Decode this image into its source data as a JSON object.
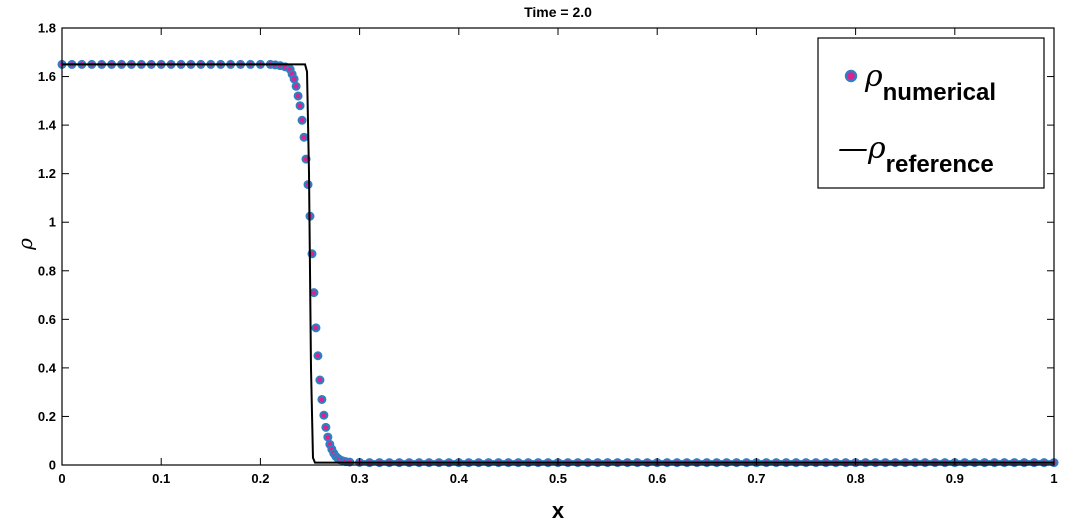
{
  "chart_data": {
    "type": "line",
    "title": "Time = 2.0",
    "xlabel": "x",
    "ylabel": "ρ",
    "xlim": [
      0,
      1
    ],
    "ylim": [
      0,
      1.8
    ],
    "xticks": [
      0,
      0.1,
      0.2,
      0.3,
      0.4,
      0.5,
      0.6,
      0.7,
      0.8,
      0.9,
      1
    ],
    "xtick_labels": [
      "0",
      "0.1",
      "0.2",
      "0.3",
      "0.4",
      "0.5",
      "0.6",
      "0.7",
      "0.8",
      "0.9",
      "1"
    ],
    "yticks": [
      0,
      0.2,
      0.4,
      0.6,
      0.8,
      1,
      1.2,
      1.4,
      1.6,
      1.8
    ],
    "ytick_labels": [
      "0",
      "0.2",
      "0.4",
      "0.6",
      "0.8",
      "1",
      "1.2",
      "1.4",
      "1.6",
      "1.8"
    ],
    "grid": false,
    "legend_position": "top-right",
    "series": [
      {
        "name": "ρ numerical",
        "legend_symbol": "ρ",
        "legend_subscript": "numerical",
        "style": "markers",
        "marker_face": "#e0208f",
        "marker_edge": "#2f7fc1",
        "note": "left state 1.65, smooth drop centered near x = 0.25, right state 0.01",
        "x": [
          0,
          0.01,
          0.02,
          0.03,
          0.04,
          0.05,
          0.06,
          0.07,
          0.08,
          0.09,
          0.1,
          0.11,
          0.12,
          0.13,
          0.14,
          0.15,
          0.16,
          0.17,
          0.18,
          0.19,
          0.2,
          0.21,
          0.215,
          0.22,
          0.225,
          0.23,
          0.232,
          0.234,
          0.236,
          0.238,
          0.24,
          0.242,
          0.244,
          0.246,
          0.248,
          0.25,
          0.252,
          0.254,
          0.256,
          0.258,
          0.26,
          0.262,
          0.264,
          0.266,
          0.268,
          0.27,
          0.272,
          0.274,
          0.276,
          0.278,
          0.28,
          0.283,
          0.286,
          0.29,
          0.3,
          0.31,
          0.32,
          0.33,
          0.34,
          0.35,
          0.36,
          0.37,
          0.38,
          0.39,
          0.4,
          0.41,
          0.42,
          0.43,
          0.44,
          0.45,
          0.46,
          0.47,
          0.48,
          0.49,
          0.5,
          0.51,
          0.52,
          0.53,
          0.54,
          0.55,
          0.56,
          0.57,
          0.58,
          0.59,
          0.6,
          0.61,
          0.62,
          0.63,
          0.64,
          0.65,
          0.66,
          0.67,
          0.68,
          0.69,
          0.7,
          0.71,
          0.72,
          0.73,
          0.74,
          0.75,
          0.76,
          0.77,
          0.78,
          0.79,
          0.8,
          0.81,
          0.82,
          0.83,
          0.84,
          0.85,
          0.86,
          0.87,
          0.88,
          0.89,
          0.9,
          0.91,
          0.92,
          0.93,
          0.94,
          0.95,
          0.96,
          0.97,
          0.98,
          0.99,
          1.0
        ],
        "y": [
          1.65,
          1.65,
          1.65,
          1.65,
          1.65,
          1.65,
          1.65,
          1.65,
          1.65,
          1.65,
          1.65,
          1.65,
          1.65,
          1.65,
          1.65,
          1.65,
          1.65,
          1.65,
          1.65,
          1.65,
          1.65,
          1.65,
          1.648,
          1.645,
          1.64,
          1.63,
          1.61,
          1.59,
          1.56,
          1.52,
          1.48,
          1.42,
          1.35,
          1.26,
          1.155,
          1.025,
          0.87,
          0.71,
          0.565,
          0.45,
          0.35,
          0.27,
          0.205,
          0.155,
          0.115,
          0.085,
          0.065,
          0.048,
          0.036,
          0.028,
          0.022,
          0.017,
          0.014,
          0.012,
          0.011,
          0.01,
          0.01,
          0.01,
          0.01,
          0.01,
          0.01,
          0.01,
          0.01,
          0.01,
          0.01,
          0.01,
          0.01,
          0.01,
          0.01,
          0.01,
          0.01,
          0.01,
          0.01,
          0.01,
          0.01,
          0.01,
          0.01,
          0.01,
          0.01,
          0.01,
          0.01,
          0.01,
          0.01,
          0.01,
          0.01,
          0.01,
          0.01,
          0.01,
          0.01,
          0.01,
          0.01,
          0.01,
          0.01,
          0.01,
          0.01,
          0.01,
          0.01,
          0.01,
          0.01,
          0.01,
          0.01,
          0.01,
          0.01,
          0.01,
          0.01,
          0.01,
          0.01,
          0.01,
          0.01,
          0.01,
          0.01,
          0.01,
          0.01,
          0.01,
          0.01,
          0.01,
          0.01,
          0.01,
          0.01,
          0.01,
          0.01,
          0.01,
          0.01,
          0.01,
          0.01
        ]
      },
      {
        "name": "ρ reference",
        "legend_symbol": "ρ",
        "legend_subscript": "reference",
        "legend_prefix": "—",
        "style": "line",
        "color": "#000000",
        "x": [
          0,
          0.245,
          0.247,
          0.249,
          0.251,
          0.253,
          0.255,
          1.0
        ],
        "y": [
          1.65,
          1.65,
          1.62,
          1.2,
          0.4,
          0.03,
          0.01,
          0.01
        ]
      }
    ]
  }
}
